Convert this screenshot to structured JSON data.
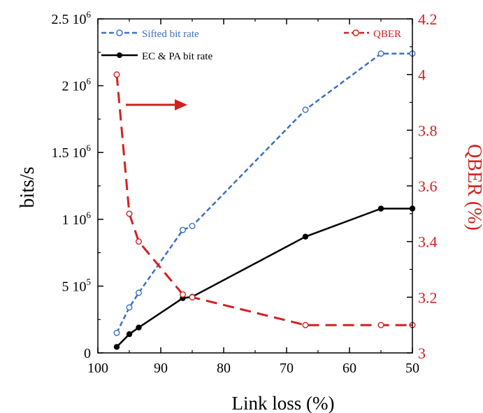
{
  "chart_data": {
    "type": "line",
    "xlabel": "Link loss (%)",
    "ylabel": "bits/s",
    "y2label": "QBER (%)",
    "xlim": [
      100,
      50
    ],
    "x_reversed": true,
    "ylim": [
      0,
      2500000
    ],
    "y2lim": [
      3,
      4.2
    ],
    "x_ticks": [
      "100",
      "90",
      "80",
      "70",
      "60",
      "50"
    ],
    "y_ticks": [
      {
        "mantissa": "0",
        "exp": ""
      },
      {
        "mantissa": "5 10",
        "exp": "5"
      },
      {
        "mantissa": "1 10",
        "exp": "6"
      },
      {
        "mantissa": "1.5 10",
        "exp": "6"
      },
      {
        "mantissa": "2 10",
        "exp": "6"
      },
      {
        "mantissa": "2.5 10",
        "exp": "6"
      }
    ],
    "y2_ticks": [
      "3",
      "3.2",
      "3.4",
      "3.6",
      "3.8",
      "4",
      "4.2"
    ],
    "grid": false,
    "legend": [
      "top-left",
      "top-right"
    ],
    "series": [
      {
        "name": "Sifted bit rate",
        "axis": "left",
        "color": "#3a6fc4",
        "style": "dashed",
        "marker": "open-circle",
        "x": [
          97,
          95,
          93.5,
          86.5,
          85,
          67,
          55,
          50
        ],
        "y": [
          150000,
          340000,
          450000,
          920000,
          950000,
          1820000,
          2240000,
          2240000
        ]
      },
      {
        "name": "EC & PA bit rate",
        "axis": "left",
        "color": "#000000",
        "style": "solid",
        "marker": "filled-circle",
        "x": [
          97,
          95,
          93.5,
          86.5,
          85,
          67,
          55,
          50
        ],
        "y": [
          45000,
          140000,
          190000,
          410000,
          420000,
          870000,
          1080000,
          1080000
        ]
      },
      {
        "name": "QBER",
        "axis": "right",
        "color": "#d42020",
        "style": "dashed",
        "marker": "open-circle",
        "x": [
          97,
          95,
          93.5,
          86.5,
          85,
          67,
          55,
          50
        ],
        "y": [
          4.0,
          3.5,
          3.4,
          3.21,
          3.2,
          3.1,
          3.1,
          3.1
        ]
      }
    ],
    "annotations": [
      {
        "type": "arrow",
        "direction": "right",
        "color": "#d42020"
      }
    ]
  }
}
